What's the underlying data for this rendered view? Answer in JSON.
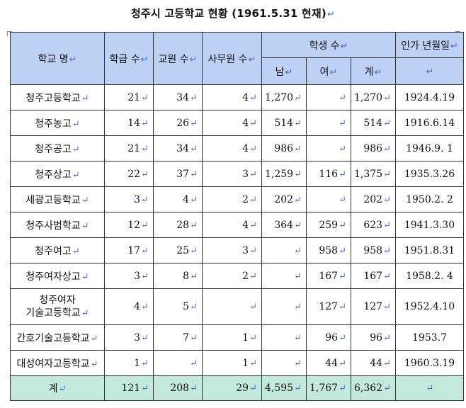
{
  "title": "청주시 고등학교 현황 (1961.5.31 현재)",
  "headers": {
    "school": "학교 명",
    "classes": "학급 수",
    "teachers": "교원 수",
    "staff": "사무원 수",
    "students": "학생 수",
    "approval": "인가 년월일",
    "male": "남",
    "female": "여",
    "sum": "계"
  },
  "rows": [
    {
      "school": "청주고등학교",
      "classes": "21",
      "teachers": "34",
      "staff": "4",
      "male": "1,270",
      "female": "",
      "sum": "1,270",
      "approval": "1924.4.19"
    },
    {
      "school": "청주농고",
      "classes": "14",
      "teachers": "26",
      "staff": "4",
      "male": "514",
      "female": "",
      "sum": "514",
      "approval": "1916.6.14"
    },
    {
      "school": "청주공고",
      "classes": "21",
      "teachers": "34",
      "staff": "4",
      "male": "986",
      "female": "",
      "sum": "986",
      "approval": "1946.9. 1"
    },
    {
      "school": "청주상고",
      "classes": "22",
      "teachers": "37",
      "staff": "3",
      "male": "1,259",
      "female": "116",
      "sum": "1,375",
      "approval": "1935.3.26"
    },
    {
      "school": "세광고등학교",
      "classes": "3",
      "teachers": "4",
      "staff": "2",
      "male": "202",
      "female": "",
      "sum": "202",
      "approval": "1950.2. 2"
    },
    {
      "school": "청주사범학교",
      "classes": "12",
      "teachers": "28",
      "staff": "4",
      "male": "364",
      "female": "259",
      "sum": "623",
      "approval": "1941.3.30"
    },
    {
      "school": "청주여고",
      "classes": "17",
      "teachers": "25",
      "staff": "3",
      "male": "",
      "female": "958",
      "sum": "958",
      "approval": "1951.8.31"
    },
    {
      "school": "청주여자상고",
      "classes": "3",
      "teachers": "8",
      "staff": "2",
      "male": "",
      "female": "167",
      "sum": "167",
      "approval": "1958.2. 4"
    },
    {
      "school_line1": "청주여자",
      "school_line2": "기술고등학교",
      "classes": "4",
      "teachers": "5",
      "staff": "",
      "male": "",
      "female": "127",
      "sum": "127",
      "approval": "1952.4.10"
    },
    {
      "school": "간호기술고등학교",
      "classes": "3",
      "teachers": "7",
      "staff": "1",
      "male": "",
      "female": "96",
      "sum": "96",
      "approval": "1953.7"
    },
    {
      "school": "대성여자고등학교",
      "classes": "1",
      "teachers": "",
      "staff": "1",
      "male": "",
      "female": "44",
      "sum": "44",
      "approval": "1960.3.19"
    }
  ],
  "total": {
    "label": "계",
    "classes": "121",
    "teachers": "208",
    "staff": "29",
    "male": "4,595",
    "female": "1,767",
    "sum": "6,362",
    "approval": ""
  },
  "colors": {
    "header_bg": "#bdd1f5",
    "total_bg": "#c3e9dc",
    "paragraph_mark": "#4a6bd6"
  },
  "paragraph_mark": "↵"
}
